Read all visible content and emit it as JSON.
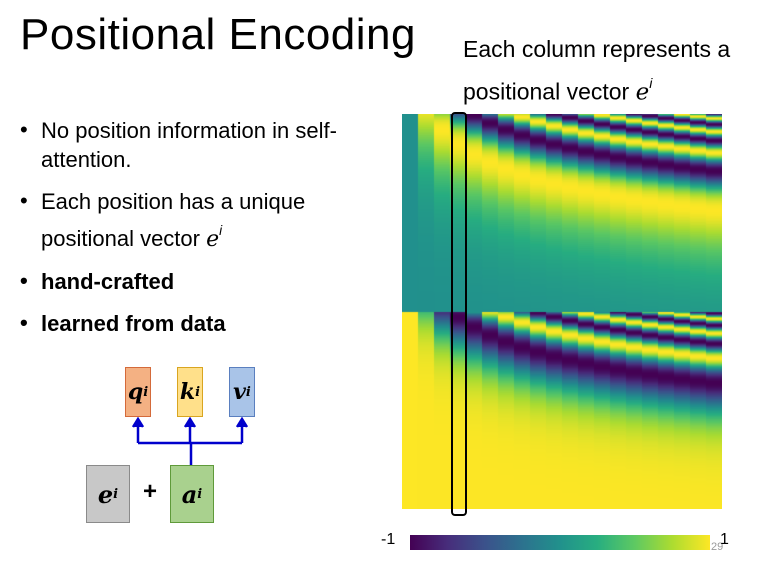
{
  "slide": {
    "title": "Positional Encoding",
    "caption_line1": "Each column represents a",
    "caption_line2": "positional vector",
    "caption_var": "e",
    "caption_sup": "i",
    "page_number": "29"
  },
  "bullets": [
    {
      "text": "No position information in self-attention."
    },
    {
      "text": "Each position has a unique",
      "text2": "positional vector",
      "var": "e",
      "sup": "i"
    },
    {
      "text": "hand-crafted"
    },
    {
      "text": "learned from data"
    }
  ],
  "diagram": {
    "q": {
      "var": "q",
      "sup": "i",
      "color": "#f4b183"
    },
    "k": {
      "var": "k",
      "sup": "i",
      "color": "#ffe08a"
    },
    "v": {
      "var": "v",
      "sup": "i",
      "color": "#a9c4e8"
    },
    "e": {
      "var": "e",
      "sup": "i",
      "color": "#c8c8c8"
    },
    "a": {
      "var": "a",
      "sup": "i",
      "color": "#a9d18e"
    },
    "plus": "+",
    "arrow_color": "#0000cc"
  },
  "heatmap": {
    "colormap": "viridis",
    "colorbar_min_label": "-1",
    "colorbar_max_label": "1"
  }
}
